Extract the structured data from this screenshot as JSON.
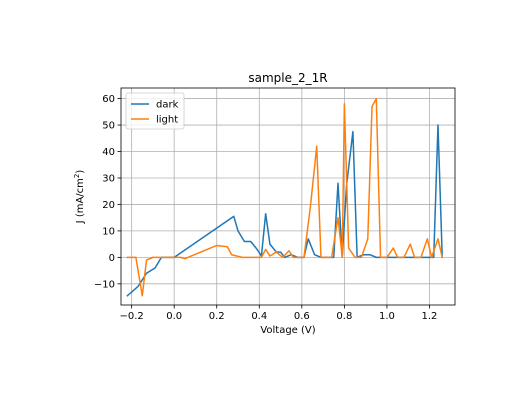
{
  "chart_data": {
    "type": "line",
    "title": "sample_2_1R",
    "xlabel": "Voltage (V)",
    "ylabel_main": "J (mA/cm",
    "ylabel_sup": "2",
    "ylabel_end": ")",
    "xlim": [
      -0.25,
      1.32
    ],
    "ylim": [
      -18,
      64
    ],
    "xticks": [
      -0.2,
      0.0,
      0.2,
      0.4,
      0.6,
      0.8,
      1.0,
      1.2
    ],
    "xtick_labels": [
      "−0.2",
      "0.0",
      "0.2",
      "0.4",
      "0.6",
      "0.8",
      "1.0",
      "1.2"
    ],
    "yticks": [
      -10,
      0,
      10,
      20,
      30,
      40,
      50,
      60
    ],
    "ytick_labels": [
      "−10",
      "0",
      "10",
      "20",
      "30",
      "40",
      "50",
      "60"
    ],
    "grid": true,
    "legend_position": "top-left",
    "series": [
      {
        "name": "dark",
        "color": "#1f77b4",
        "points": [
          [
            -0.22,
            -14.5
          ],
          [
            -0.17,
            -11.0
          ],
          [
            -0.13,
            -6.0
          ],
          [
            -0.09,
            -4.0
          ],
          [
            -0.06,
            0.0
          ],
          [
            0.0,
            0.0
          ],
          [
            0.28,
            15.5
          ],
          [
            0.3,
            10.0
          ],
          [
            0.33,
            6.0
          ],
          [
            0.36,
            6.0
          ],
          [
            0.39,
            3.0
          ],
          [
            0.41,
            0.5
          ],
          [
            0.43,
            16.5
          ],
          [
            0.45,
            5.0
          ],
          [
            0.48,
            2.0
          ],
          [
            0.5,
            2.0
          ],
          [
            0.52,
            0.0
          ],
          [
            0.55,
            1.0
          ],
          [
            0.58,
            0.0
          ],
          [
            0.61,
            0.0
          ],
          [
            0.63,
            7.0
          ],
          [
            0.66,
            1.0
          ],
          [
            0.69,
            0.0
          ],
          [
            0.72,
            0.0
          ],
          [
            0.75,
            0.0
          ],
          [
            0.77,
            28.0
          ],
          [
            0.79,
            0.0
          ],
          [
            0.81,
            27.0
          ],
          [
            0.84,
            47.5
          ],
          [
            0.86,
            0.0
          ],
          [
            0.89,
            1.0
          ],
          [
            0.92,
            1.0
          ],
          [
            0.95,
            0.0
          ],
          [
            0.98,
            0.0
          ],
          [
            1.01,
            0.0
          ],
          [
            1.04,
            0.0
          ],
          [
            1.07,
            0.0
          ],
          [
            1.1,
            0.0
          ],
          [
            1.13,
            0.0
          ],
          [
            1.16,
            0.0
          ],
          [
            1.19,
            0.0
          ],
          [
            1.22,
            0.0
          ],
          [
            1.24,
            50.0
          ],
          [
            1.26,
            0.0
          ]
        ]
      },
      {
        "name": "light",
        "color": "#ff7f0e",
        "points": [
          [
            -0.22,
            0.0
          ],
          [
            -0.18,
            0.0
          ],
          [
            -0.15,
            -14.5
          ],
          [
            -0.13,
            -1.0
          ],
          [
            -0.1,
            0.0
          ],
          [
            0.03,
            0.0
          ],
          [
            0.05,
            -0.5
          ],
          [
            0.2,
            4.5
          ],
          [
            0.25,
            4.0
          ],
          [
            0.27,
            1.0
          ],
          [
            0.32,
            0.0
          ],
          [
            0.38,
            0.0
          ],
          [
            0.41,
            0.0
          ],
          [
            0.43,
            3.0
          ],
          [
            0.45,
            0.5
          ],
          [
            0.48,
            2.0
          ],
          [
            0.51,
            0.0
          ],
          [
            0.54,
            2.5
          ],
          [
            0.56,
            0.0
          ],
          [
            0.58,
            0.0
          ],
          [
            0.61,
            0.0
          ],
          [
            0.64,
            19.0
          ],
          [
            0.67,
            42.0
          ],
          [
            0.69,
            0.0
          ],
          [
            0.72,
            0.0
          ],
          [
            0.74,
            0.0
          ],
          [
            0.77,
            15.0
          ],
          [
            0.79,
            0.0
          ],
          [
            0.8,
            58.0
          ],
          [
            0.82,
            3.5
          ],
          [
            0.85,
            0.0
          ],
          [
            0.88,
            0.0
          ],
          [
            0.91,
            7.0
          ],
          [
            0.93,
            57.0
          ],
          [
            0.95,
            60.0
          ],
          [
            0.97,
            0.0
          ],
          [
            1.0,
            0.0
          ],
          [
            1.03,
            3.5
          ],
          [
            1.05,
            0.0
          ],
          [
            1.08,
            0.0
          ],
          [
            1.11,
            5.0
          ],
          [
            1.13,
            0.0
          ],
          [
            1.16,
            0.0
          ],
          [
            1.19,
            7.0
          ],
          [
            1.21,
            0.0
          ],
          [
            1.24,
            7.0
          ],
          [
            1.26,
            0.0
          ]
        ]
      }
    ]
  }
}
